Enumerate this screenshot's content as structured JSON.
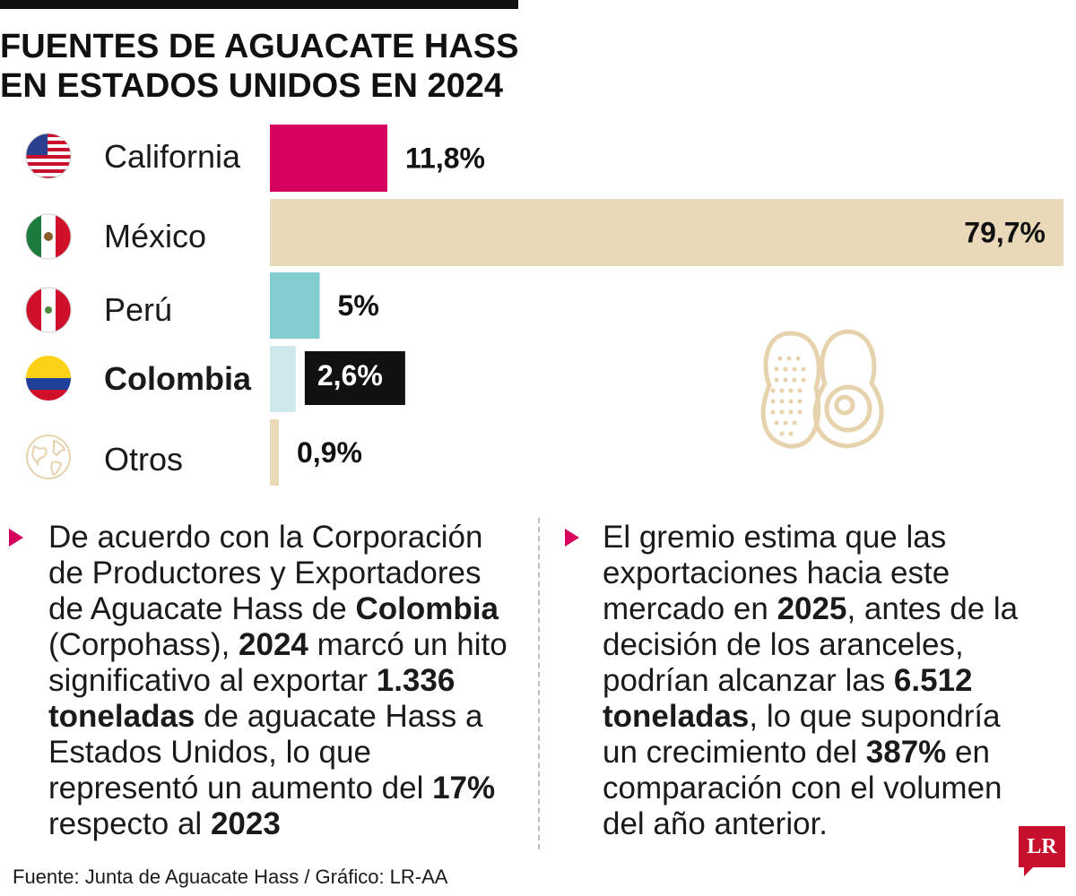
{
  "title_line1": "FUENTES DE AGUACATE HASS",
  "title_line2": "EN ESTADOS UNIDOS EN 2024",
  "chart_data": {
    "type": "bar",
    "orientation": "horizontal",
    "categories": [
      "California",
      "México",
      "Perú",
      "Colombia",
      "Otros"
    ],
    "values": [
      11.8,
      79.7,
      5,
      2.6,
      0.9
    ],
    "value_labels": [
      "11,8%",
      "79,7%",
      "5%",
      "2,6%",
      "0,9%"
    ],
    "unit": "%",
    "highlight": "Colombia",
    "colors": [
      "#d6005f",
      "#e9d9b8",
      "#83ccd0",
      "#cfe8ea",
      "#e9d9b8"
    ],
    "flags": [
      "us-flag-icon",
      "mexico-flag-icon",
      "peru-flag-icon",
      "colombia-flag-icon",
      "globe-icon"
    ]
  },
  "left_text": {
    "p1": "De acuerdo con la Corporación de Productores y Exportadores de Aguacate Hass de ",
    "b1": "Colombia",
    "p2": " (Corpohass), ",
    "b2": "2024",
    "p3": " marcó un hito significativo al exportar ",
    "b3": "1.336 toneladas",
    "p4": " de aguacate Hass a Estados Unidos, lo que representó un aumento del ",
    "b4": "17%",
    "p5": " respecto al ",
    "b5": "2023"
  },
  "right_text": {
    "p1": "El gremio estima que las exportaciones hacia este mercado en ",
    "b1": "2025",
    "p2": ", antes de la decisión de los aranceles, podrían alcanzar las ",
    "b2": "6.512 toneladas",
    "p3": ", lo que supondría un crecimiento del ",
    "b3": "387%",
    "p4": " en comparación con el volumen del año anterior."
  },
  "source": "Fuente: Junta de Aguacate Hass / Gráfico: LR-AA",
  "logo_text": "LR",
  "colors": {
    "accent": "#d6005f",
    "logo_red": "#c8102e",
    "avocado_beige": "#e6d3ad"
  }
}
